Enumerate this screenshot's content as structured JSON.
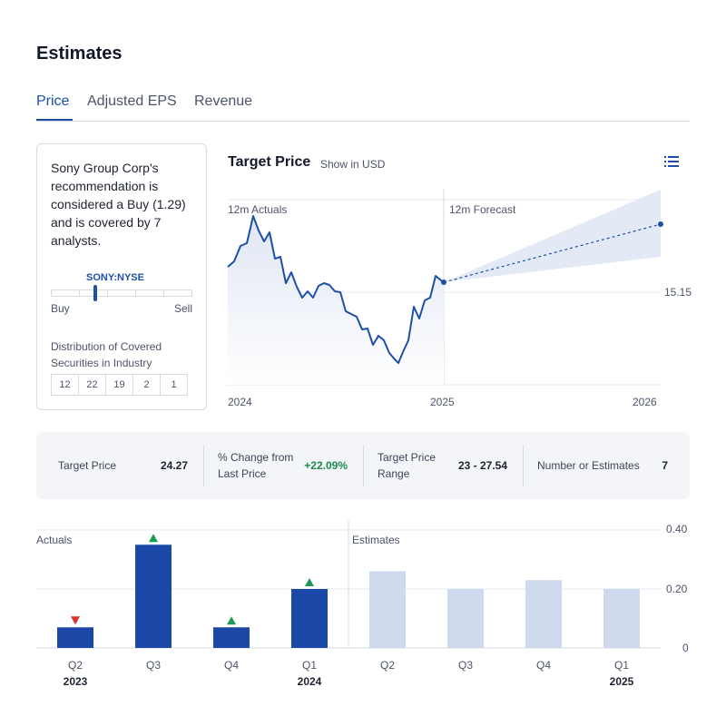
{
  "page": {
    "title": "Estimates"
  },
  "tabs": [
    {
      "label": "Price",
      "active": true
    },
    {
      "label": "Adjusted EPS",
      "active": false
    },
    {
      "label": "Revenue",
      "active": false
    }
  ],
  "recommendation": {
    "text": "Sony Group Corp's recommendation is considered a Buy (1.29) and is covered by 7 analysts.",
    "ticker": "SONY:NYSE",
    "scale_low": "Buy",
    "scale_high": "Sell",
    "score": 1.29,
    "distribution_title": "Distribution of Covered Securities in Industry",
    "distribution": [
      "12",
      "22",
      "19",
      "2",
      "1"
    ]
  },
  "target_price_chart": {
    "title": "Target Price",
    "subtitle": "Show in USD",
    "menu_icon": "list-icon",
    "actuals_label": "12m Actuals",
    "forecast_label": "12m Forecast",
    "price_label": "15.15",
    "x_labels": [
      "2024",
      "2025",
      "2026"
    ],
    "colors": {
      "line": "#1e4fa8",
      "fill": "#dfe6f3",
      "band": "#e3e9f5"
    }
  },
  "stats": [
    {
      "label": "Target Price",
      "value": "24.27"
    },
    {
      "label": "% Change from Last Price",
      "value": "+22.09%"
    },
    {
      "label": "Target Price Range",
      "value": "23 - 27.54"
    },
    {
      "label": "Number or Estimates",
      "value": "7"
    }
  ],
  "chart_data": {
    "type": "bar",
    "categories": [
      "Q2",
      "Q3",
      "Q4",
      "Q1",
      "Q2",
      "Q3",
      "Q4",
      "Q1"
    ],
    "year_labels": [
      "2023",
      "",
      "",
      "2024",
      "",
      "",
      "",
      "2025"
    ],
    "values": [
      0.07,
      0.35,
      0.07,
      0.2,
      0.26,
      0.2,
      0.23,
      0.2
    ],
    "kinds": [
      "actual",
      "actual",
      "actual",
      "actual",
      "estimate",
      "estimate",
      "estimate",
      "estimate"
    ],
    "surprise": [
      "down",
      "up",
      "up",
      "up",
      "",
      "",
      "",
      ""
    ],
    "actuals_label": "Actuals",
    "estimates_label": "Estimates",
    "y_ticks": [
      "0.40",
      "0.20",
      "0"
    ],
    "ylim": [
      0,
      0.4
    ],
    "colors": {
      "actual": "#1b48a6",
      "estimate": "#cfdaee",
      "up": "#1b9a55",
      "down": "#d93025"
    }
  }
}
